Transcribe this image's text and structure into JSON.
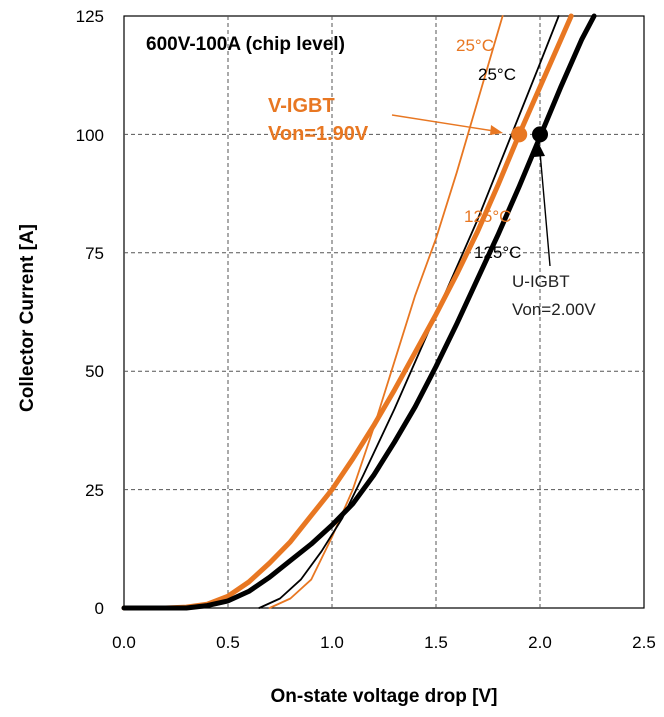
{
  "chart_data": {
    "type": "line",
    "title": "600V-100A (chip level)",
    "xlabel": "On-state voltage drop [V]",
    "ylabel": "Collector Current [A]",
    "xlim": [
      0.0,
      2.5
    ],
    "ylim": [
      0,
      125
    ],
    "x_ticks": [
      "0.0",
      "0.5",
      "1.0",
      "1.5",
      "2.0",
      "2.5"
    ],
    "y_ticks": [
      "0",
      "25",
      "50",
      "75",
      "100",
      "125"
    ],
    "grid": "dashed",
    "colors": {
      "v_igbt": "#e87722",
      "u_igbt": "#000000"
    },
    "series": [
      {
        "name": "25°C",
        "device": "V-IGBT",
        "color": "#e87722",
        "points": [
          [
            0.7,
            0
          ],
          [
            0.8,
            2
          ],
          [
            0.9,
            6
          ],
          [
            1.0,
            15
          ],
          [
            1.1,
            25
          ],
          [
            1.2,
            38
          ],
          [
            1.3,
            52
          ],
          [
            1.4,
            66
          ],
          [
            1.5,
            78
          ],
          [
            1.6,
            92
          ],
          [
            1.7,
            107
          ],
          [
            1.8,
            122
          ],
          [
            1.82,
            125
          ]
        ]
      },
      {
        "name": "25°C",
        "device": "U-IGBT",
        "color": "#000000",
        "points": [
          [
            0.65,
            0
          ],
          [
            0.75,
            2
          ],
          [
            0.85,
            6
          ],
          [
            0.95,
            12
          ],
          [
            1.05,
            19
          ],
          [
            1.15,
            28
          ],
          [
            1.3,
            42
          ],
          [
            1.5,
            62
          ],
          [
            1.7,
            82
          ],
          [
            1.8,
            93
          ],
          [
            1.9,
            104
          ],
          [
            2.0,
            115
          ],
          [
            2.09,
            125
          ]
        ]
      },
      {
        "name": "125°C",
        "device": "V-IGBT",
        "color": "#e87722",
        "points": [
          [
            0.0,
            0
          ],
          [
            0.2,
            0
          ],
          [
            0.3,
            0.2
          ],
          [
            0.4,
            0.8
          ],
          [
            0.5,
            2.5
          ],
          [
            0.6,
            5.5
          ],
          [
            0.7,
            9.5
          ],
          [
            0.8,
            14
          ],
          [
            0.9,
            19.5
          ],
          [
            1.0,
            25
          ],
          [
            1.1,
            31.5
          ],
          [
            1.2,
            38.5
          ],
          [
            1.3,
            46
          ],
          [
            1.4,
            54
          ],
          [
            1.5,
            62
          ],
          [
            1.6,
            70.5
          ],
          [
            1.7,
            79.5
          ],
          [
            1.8,
            89.5
          ],
          [
            1.9,
            100
          ],
          [
            2.0,
            110
          ],
          [
            2.1,
            120
          ],
          [
            2.15,
            125
          ]
        ]
      },
      {
        "name": "125°C",
        "device": "U-IGBT",
        "color": "#000000",
        "points": [
          [
            0.0,
            0
          ],
          [
            0.2,
            0
          ],
          [
            0.3,
            0
          ],
          [
            0.4,
            0.5
          ],
          [
            0.5,
            1.5
          ],
          [
            0.6,
            3.5
          ],
          [
            0.7,
            6.5
          ],
          [
            0.8,
            10
          ],
          [
            0.9,
            13.5
          ],
          [
            1.0,
            17.5
          ],
          [
            1.1,
            22
          ],
          [
            1.2,
            28
          ],
          [
            1.3,
            35
          ],
          [
            1.4,
            42.5
          ],
          [
            1.5,
            51
          ],
          [
            1.6,
            60
          ],
          [
            1.7,
            69.5
          ],
          [
            1.8,
            79
          ],
          [
            1.9,
            89
          ],
          [
            2.0,
            99.5
          ],
          [
            2.1,
            110
          ],
          [
            2.2,
            120
          ],
          [
            2.26,
            125
          ]
        ]
      }
    ],
    "markers": [
      {
        "device": "V-IGBT",
        "x": 1.9,
        "y": 100,
        "color": "#e87722"
      },
      {
        "device": "U-IGBT",
        "x": 2.0,
        "y": 100,
        "color": "#000000"
      }
    ],
    "annotations": {
      "v_igbt_name": "V-IGBT",
      "v_igbt_von": "Von=1.90V",
      "u_igbt_name": "U-IGBT",
      "u_igbt_von": "Von=2.00V",
      "label_25_orange": "25°C",
      "label_25_black": "25°C",
      "label_125_orange": "125°C",
      "label_125_black": "125°C"
    }
  }
}
